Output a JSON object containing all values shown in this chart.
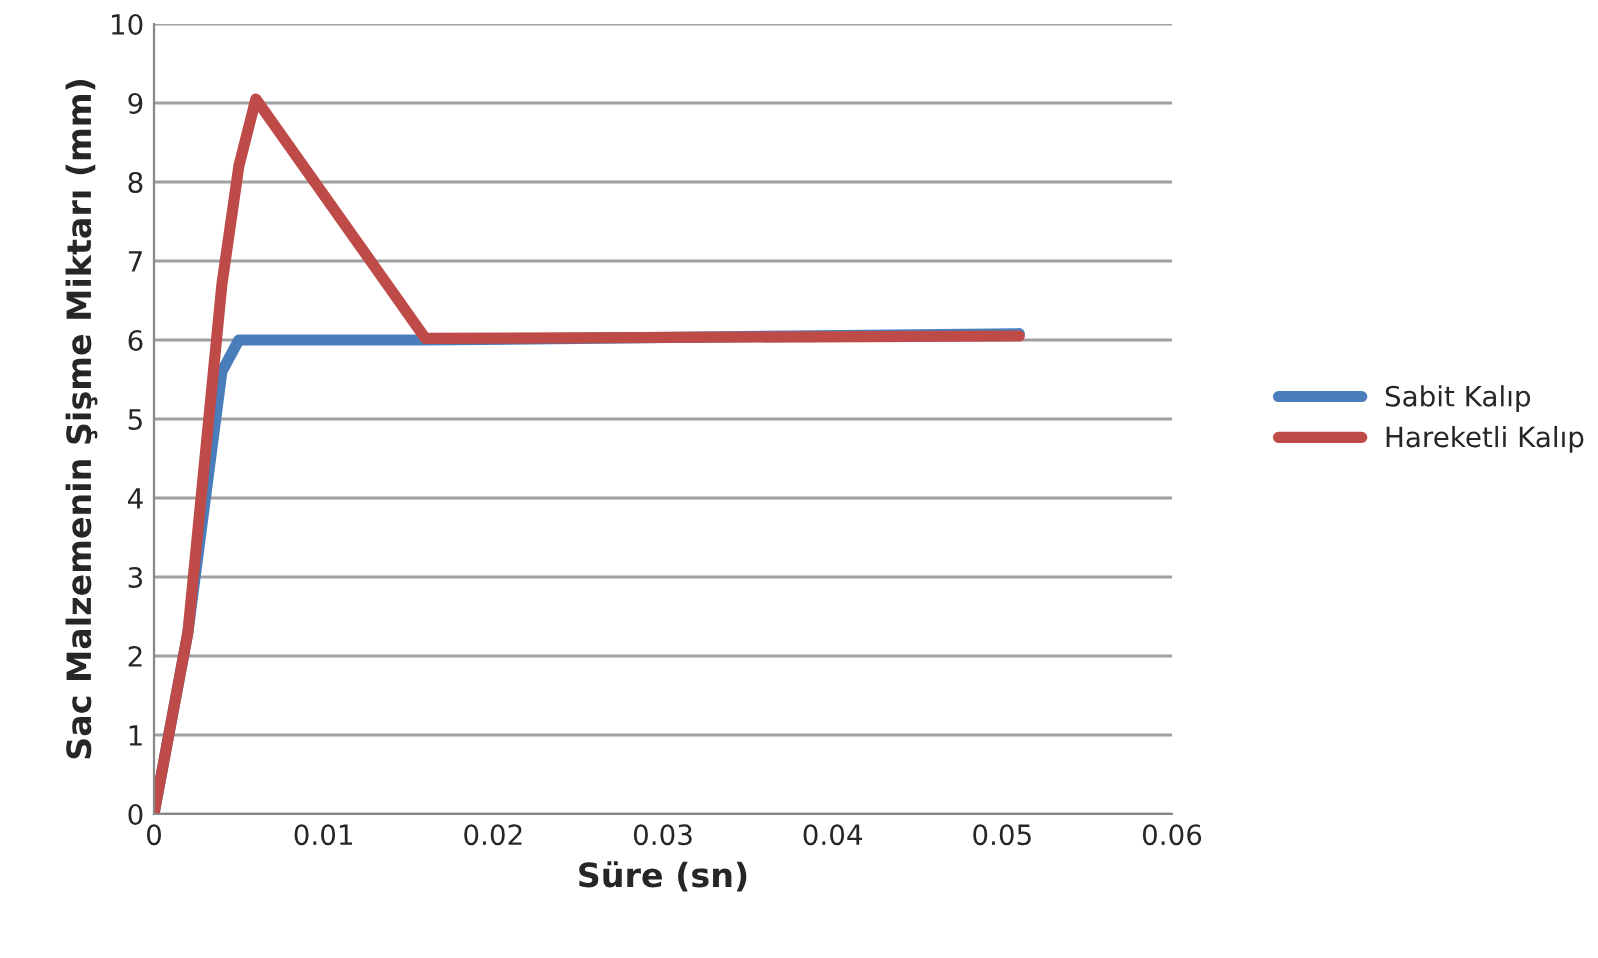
{
  "chart_data": {
    "type": "line",
    "xlabel": "Süre (sn)",
    "ylabel": "Sac Malzemenin Şişme Miktarı (mm)",
    "xlim": [
      0,
      0.06
    ],
    "xticks": [
      0,
      0.01,
      0.02,
      0.03,
      0.04,
      0.05,
      0.06
    ],
    "ylim": [
      0,
      10
    ],
    "yticks": [
      0,
      1,
      2,
      3,
      4,
      5,
      6,
      7,
      8,
      9,
      10
    ],
    "grid": "y",
    "legend": "right",
    "marker": "none",
    "series": [
      {
        "name": "Sabit Kalıp",
        "color": "#4a7ebb",
        "x": [
          0,
          0.002,
          0.004,
          0.005,
          0.016,
          0.051
        ],
        "values": [
          0,
          2.3,
          5.6,
          6.0,
          6.0,
          6.08
        ]
      },
      {
        "name": "Hareketli Kalıp",
        "color": "#be4b48",
        "x": [
          0,
          0.002,
          0.004,
          0.005,
          0.006,
          0.016,
          0.051
        ],
        "values": [
          0,
          2.3,
          6.7,
          8.2,
          9.05,
          6.02,
          6.05
        ]
      }
    ]
  }
}
